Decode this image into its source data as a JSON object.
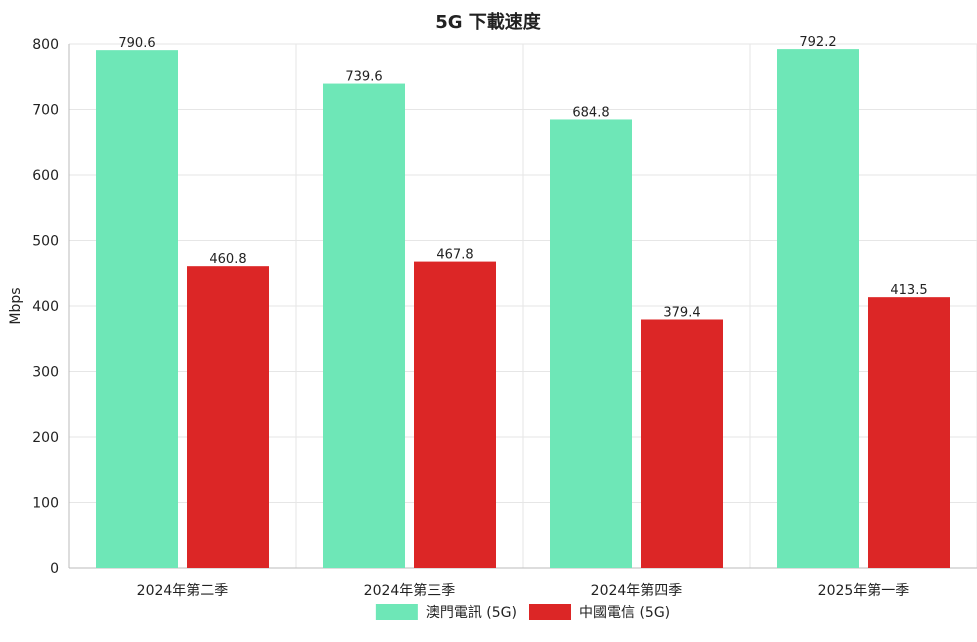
{
  "chart_data": {
    "type": "bar",
    "title": "5G 下載速度",
    "ylabel": "Mbps",
    "xlabel": "",
    "ylim": [
      0,
      800
    ],
    "yticks": [
      0,
      100,
      200,
      300,
      400,
      500,
      600,
      700,
      800
    ],
    "grid": true,
    "legend_position": "bottom",
    "categories": [
      "2024年第二季",
      "2024年第三季",
      "2024年第四季",
      "2025年第一季"
    ],
    "series": [
      {
        "name": "澳門電訊 (5G)",
        "color": "#6ee7b7",
        "values": [
          790.6,
          739.6,
          684.8,
          792.2
        ],
        "labels": [
          "790.6",
          "739.6",
          "684.8",
          "792.2"
        ]
      },
      {
        "name": "中國電信 (5G)",
        "color": "#dc2626",
        "values": [
          460.8,
          467.8,
          379.4,
          413.5
        ],
        "labels": [
          "460.8",
          "467.8",
          "379.4",
          "413.5"
        ]
      }
    ]
  }
}
